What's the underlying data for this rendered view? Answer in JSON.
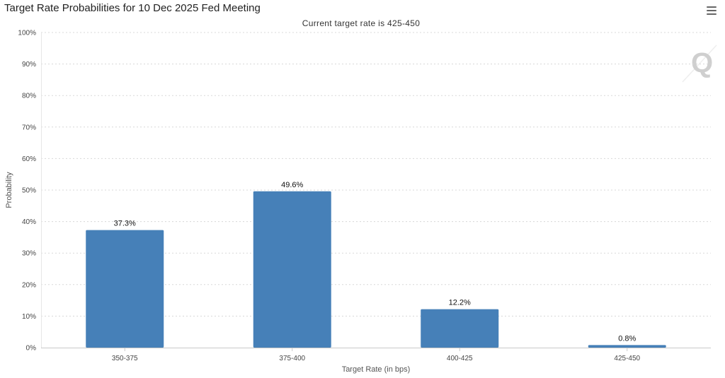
{
  "header": {
    "title": "Target Rate Probabilities for 10 Dec 2025 Fed Meeting",
    "subtitle": "Current target rate is 425-450",
    "menu_icon": "hamburger-menu-icon",
    "watermark_icon": "q-logo-icon"
  },
  "colors": {
    "bar": "#4680b8",
    "gridline": "#d8d8d8",
    "axis": "#c8c8c8"
  },
  "chart_data": {
    "type": "bar",
    "title": "Target Rate Probabilities for 10 Dec 2025 Fed Meeting",
    "subtitle": "Current target rate is 425-450",
    "xlabel": "Target Rate (in bps)",
    "ylabel": "Probability",
    "categories": [
      "350-375",
      "375-400",
      "400-425",
      "425-450"
    ],
    "values": [
      37.3,
      49.6,
      12.2,
      0.8
    ],
    "data_labels": [
      "37.3%",
      "49.6%",
      "12.2%",
      "0.8%"
    ],
    "ylim": [
      0,
      100
    ],
    "yticks": [
      0,
      10,
      20,
      30,
      40,
      50,
      60,
      70,
      80,
      90,
      100
    ],
    "ytick_labels": [
      "0%",
      "10%",
      "20%",
      "30%",
      "40%",
      "50%",
      "60%",
      "70%",
      "80%",
      "90%",
      "100%"
    ],
    "grid": true,
    "legend": "none"
  }
}
